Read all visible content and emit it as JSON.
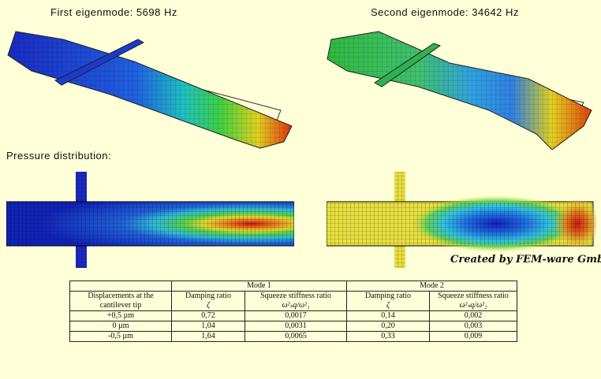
{
  "captions": {
    "mode1": "First eigenmode: 5698 Hz",
    "mode2": "Second eigenmode: 34642 Hz",
    "pressure": "Pressure distribution:"
  },
  "credit": "Created by FEM-ware GmbH",
  "table": {
    "mode1_header": "Mode 1",
    "mode2_header": "Mode 2",
    "row_header": "Displacements at the cantilever tip",
    "damping_label": "Damping ratio",
    "damping_symbol": "ζ",
    "stiffness_label": "Squeeze stiffness ratio",
    "stiffness_symbol_1": "ω²ₛq/ω²₁",
    "stiffness_symbol_2": "ω²ₛq/ω²₂",
    "rows": [
      {
        "disp": "+0,5 µm",
        "m1_damp": "0,72",
        "m1_stiff": "0,0017",
        "m2_damp": "0,14",
        "m2_stiff": "0,002"
      },
      {
        "disp": "0 µm",
        "m1_damp": "1,04",
        "m1_stiff": "0,0031",
        "m2_damp": "0,20",
        "m2_stiff": "0,003"
      },
      {
        "disp": "-0,5 µm",
        "m1_damp": "1,64",
        "m1_stiff": "0,0065",
        "m2_damp": "0,33",
        "m2_stiff": "0,009"
      }
    ]
  },
  "colors": {
    "background": "#FFFFD8",
    "field_low": "#1020C8",
    "field_high": "#D82010"
  }
}
